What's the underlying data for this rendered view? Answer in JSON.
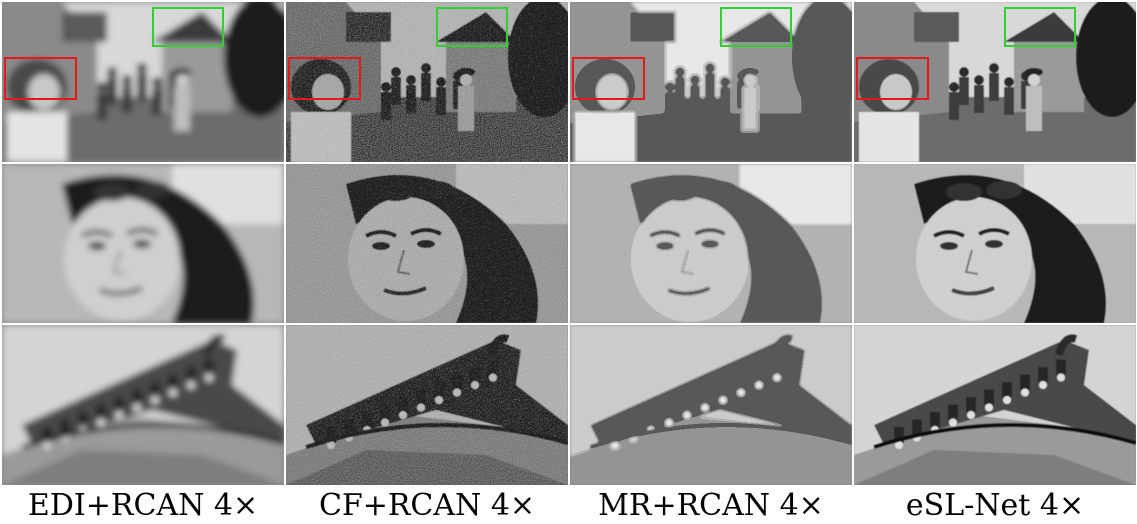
{
  "figure": {
    "columns": [
      {
        "id": "edi",
        "caption": "EDI+RCAN 4×",
        "style": "blurred"
      },
      {
        "id": "cf",
        "caption": "CF+RCAN 4×",
        "style": "noisy"
      },
      {
        "id": "mr",
        "caption": "MR+RCAN 4×",
        "style": "painterly"
      },
      {
        "id": "esl",
        "caption": "eSL-Net 4×",
        "style": "clean"
      }
    ],
    "rows": [
      {
        "id": "full-scene",
        "content": "street scene with people and traditional rooftops"
      },
      {
        "id": "zoom-red",
        "content": "zoom of woman's face"
      },
      {
        "id": "zoom-green",
        "content": "zoom of traditional roof tiles"
      }
    ],
    "roi_colors": {
      "red": "#e31a1c",
      "green": "#2fd12f"
    }
  }
}
